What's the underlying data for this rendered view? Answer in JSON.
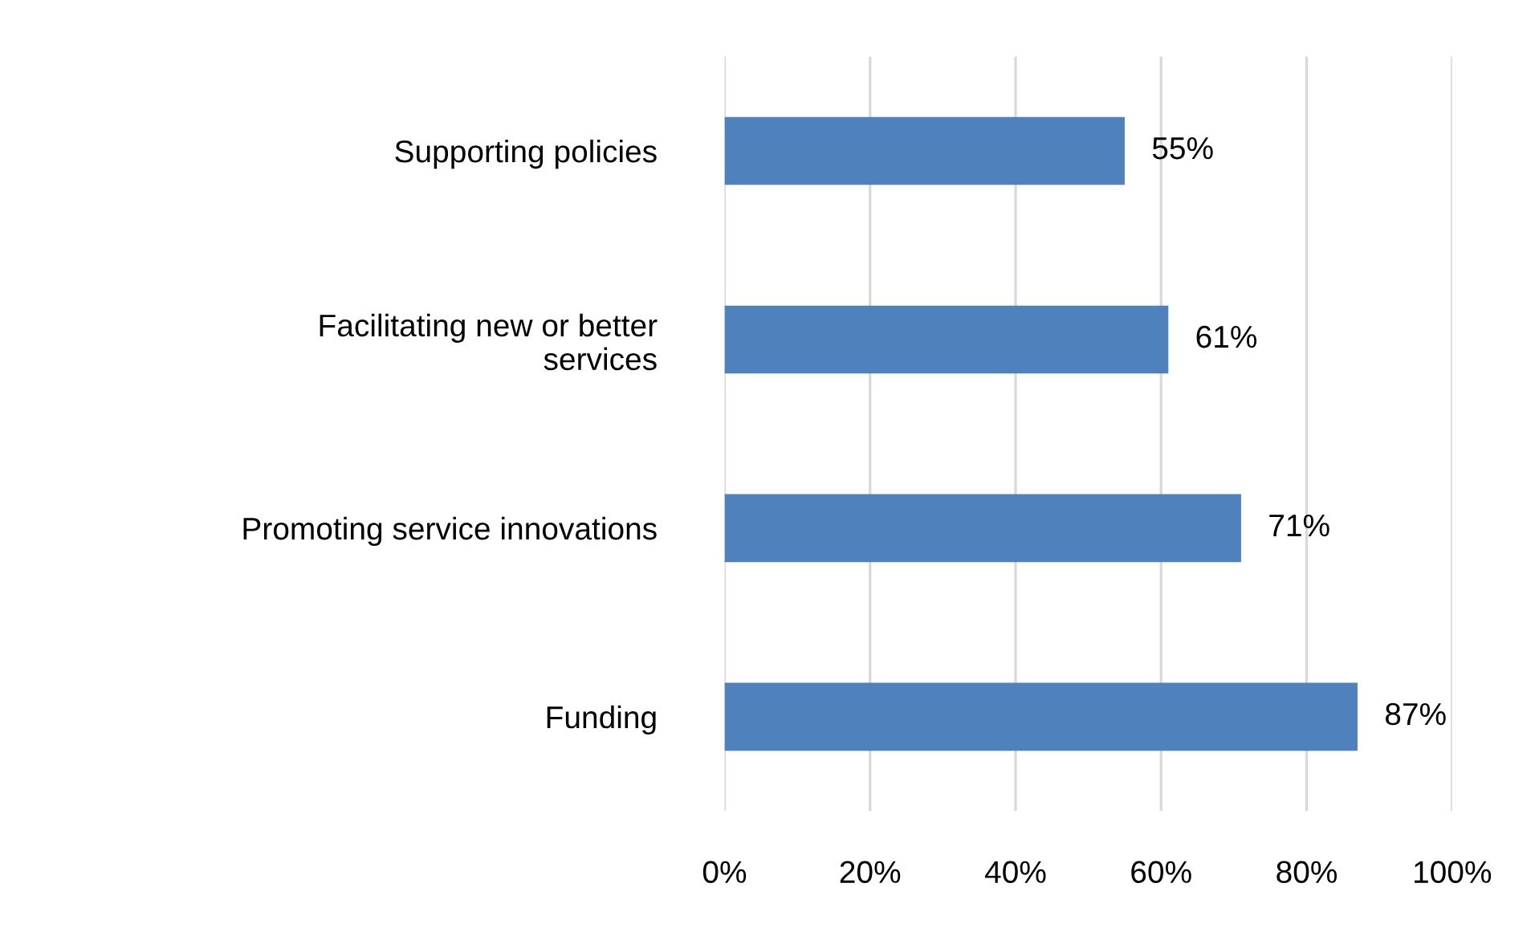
{
  "chart_data": {
    "type": "bar",
    "orientation": "horizontal",
    "categories": [
      "Supporting policies",
      "Facilitating new or better\nservices",
      "Promoting service innovations",
      "Funding"
    ],
    "values": [
      55,
      61,
      71,
      87
    ],
    "color": "#4f81bd",
    "value_labels": [
      "55%",
      "61%",
      "71%",
      "87%"
    ],
    "xlim": [
      0,
      100
    ],
    "xticks": [
      {
        "value": 0,
        "label": "0%"
      },
      {
        "value": 20,
        "label": "20%"
      },
      {
        "value": 40,
        "label": "40%"
      },
      {
        "value": 60,
        "label": "60%"
      },
      {
        "value": 80,
        "label": "80%"
      },
      {
        "value": 100,
        "label": "100%"
      }
    ],
    "grid": "x",
    "legend": false
  }
}
